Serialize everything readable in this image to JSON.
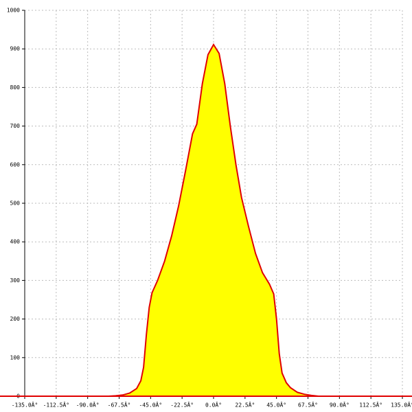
{
  "chart_data": {
    "type": "area",
    "x": [
      -135,
      -120,
      -105,
      -90,
      -80,
      -75,
      -70,
      -65,
      -60,
      -55,
      -52,
      -50,
      -48,
      -46,
      -44,
      -40,
      -35,
      -30,
      -25,
      -20,
      -15,
      -12,
      -8,
      -4,
      0,
      4,
      8,
      12,
      16,
      20,
      25,
      30,
      35,
      40,
      43,
      45,
      47,
      49,
      52,
      55,
      60,
      65,
      70,
      75,
      90,
      105,
      120,
      135
    ],
    "values": [
      0,
      0,
      0,
      0,
      0,
      0,
      1,
      3,
      8,
      20,
      40,
      75,
      160,
      230,
      268,
      300,
      350,
      415,
      493,
      585,
      680,
      705,
      810,
      885,
      911,
      888,
      810,
      700,
      600,
      515,
      440,
      370,
      320,
      290,
      265,
      200,
      110,
      60,
      35,
      22,
      10,
      5,
      2,
      0,
      0,
      0,
      0,
      0
    ],
    "color": "#ffff00",
    "line_color": "#e00000",
    "xlim": [
      -135,
      135
    ],
    "ylim": [
      0,
      1000
    ],
    "xticks": [
      {
        "value": -135,
        "label": "-135.0Â°"
      },
      {
        "value": -112.5,
        "label": "-112.5Â°"
      },
      {
        "value": -90,
        "label": "-90.0Â°"
      },
      {
        "value": -67.5,
        "label": "-67.5Â°"
      },
      {
        "value": -45,
        "label": "-45.0Â°"
      },
      {
        "value": -22.5,
        "label": "-22.5Â°"
      },
      {
        "value": 0,
        "label": "0.0Â°"
      },
      {
        "value": 22.5,
        "label": "22.5Â°"
      },
      {
        "value": 45,
        "label": "45.0Â°"
      },
      {
        "value": 67.5,
        "label": "67.5Â°"
      },
      {
        "value": 90,
        "label": "90.0Â°"
      },
      {
        "value": 112.5,
        "label": "112.5Â°"
      },
      {
        "value": 135,
        "label": "135.0Â°"
      }
    ],
    "yticks": [
      0,
      100,
      200,
      300,
      400,
      500,
      600,
      700,
      800,
      900,
      1000
    ],
    "grid": true
  }
}
